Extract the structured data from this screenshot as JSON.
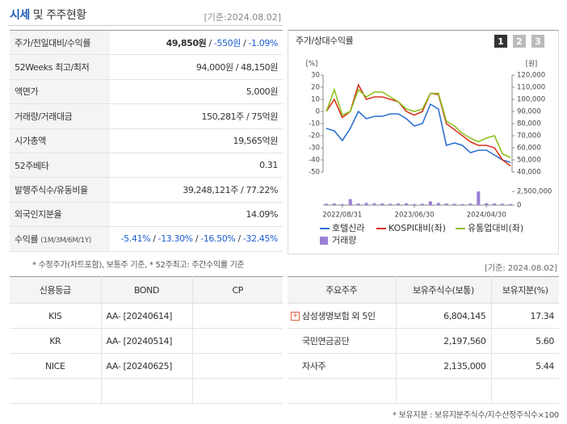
{
  "header": {
    "title_main": "시세",
    "title_rest": "및 주주현황",
    "date": "[기준:2024.08.02]"
  },
  "info_table": {
    "rows": [
      {
        "label": "주가/전일대비/수익률",
        "value": [
          "49,850원",
          " / ",
          "-550원",
          " / ",
          "-1.09%"
        ]
      },
      {
        "label": "52Weeks 최고/최저",
        "value": [
          "94,000원 / 48,150원"
        ]
      },
      {
        "label": "액면가",
        "value": [
          "5,000원"
        ]
      },
      {
        "label": "거래량/거래대금",
        "value": [
          "150,281주 / 75억원"
        ]
      },
      {
        "label": "시가총액",
        "value": [
          "19,565억원"
        ]
      },
      {
        "label": "52주베타",
        "value": [
          "0.31"
        ]
      },
      {
        "label": "발행주식수/유동비율",
        "value": [
          "39,248,121주 / 77.22%"
        ]
      },
      {
        "label": "외국인지분율",
        "value": [
          "14.09%"
        ]
      },
      {
        "label": "수익률",
        "label_note": "(1M/3M/6M/1Y)",
        "value": [
          "-5.41%",
          " / ",
          "-13.30%",
          " / ",
          "-16.50%",
          " / ",
          "-32.45%"
        ]
      }
    ],
    "footnote": "* 수정주가(차트포함), 보통주 기준, * 52주최고: 주간수익률 기준"
  },
  "chart_panel": {
    "title": "주가/상대수익률",
    "buttons": [
      "1",
      "2",
      "3"
    ],
    "date": "[기준: 2024.08.02]"
  },
  "chart_data": {
    "type": "line",
    "y_label": "[%]",
    "y2_label": "[원]",
    "categories": [
      null,
      null,
      "2022/08/31",
      null,
      null,
      null,
      null,
      null,
      null,
      null,
      null,
      "2023/06/30",
      null,
      null,
      null,
      null,
      null,
      null,
      null,
      null,
      "2024/04/30",
      null,
      null,
      null
    ],
    "ylim": [
      -50,
      30
    ],
    "yticks": [
      30,
      20,
      10,
      0,
      -10,
      -20,
      -30,
      -40,
      -50
    ],
    "y2lim": [
      40000,
      120000
    ],
    "y2ticks": [
      {
        "value": 120000,
        "label": "120,000"
      },
      {
        "value": 110000,
        "label": "110,000"
      },
      {
        "value": 100000,
        "label": "100,000"
      },
      {
        "value": 90000,
        "label": "90,000"
      },
      {
        "value": 80000,
        "label": "80,000"
      },
      {
        "value": 70000,
        "label": "70,000"
      },
      {
        "value": 60000,
        "label": "60,000"
      },
      {
        "value": 50000,
        "label": "50,000"
      },
      {
        "value": 40000,
        "label": "40,000"
      }
    ],
    "series": [
      {
        "name": "호텔신라",
        "color": "#2f6fd0",
        "axis": "y2",
        "values": [
          76000,
          74000,
          66000,
          76000,
          90000,
          84000,
          86000,
          86000,
          88000,
          88000,
          84000,
          78000,
          80000,
          96000,
          92000,
          62000,
          64000,
          62000,
          56000,
          58000,
          58000,
          54000,
          50000,
          48000
        ]
      },
      {
        "name": "KOSPI대비(좌)",
        "color": "#d9341f",
        "values": [
          0,
          10,
          -5,
          0,
          22,
          10,
          12,
          12,
          10,
          8,
          0,
          -3,
          0,
          15,
          14,
          -10,
          -15,
          -20,
          -25,
          -28,
          -28,
          -30,
          -40,
          -45
        ]
      },
      {
        "name": "유통업대비(좌)",
        "color": "#8cc21f",
        "values": [
          0,
          18,
          -3,
          0,
          18,
          12,
          16,
          16,
          12,
          8,
          2,
          0,
          2,
          15,
          15,
          -8,
          -12,
          -18,
          -22,
          -25,
          -22,
          -20,
          -35,
          -38
        ]
      }
    ],
    "volume": {
      "name": "거래량",
      "color": "#9b7fd4",
      "values": [
        250000,
        300000,
        200000,
        1100000,
        300000,
        400000,
        350000,
        300000,
        250000,
        300000,
        350000,
        200000,
        250000,
        700000,
        400000,
        300000,
        250000,
        200000,
        300000,
        2500000,
        350000,
        300000,
        250000,
        200000
      ]
    },
    "volume_lim": [
      0,
      2500000
    ],
    "volume_ticks": [
      {
        "value": 2500000,
        "label": "2,500,000"
      },
      0
    ]
  },
  "credit_table": {
    "header": [
      "신용등급",
      "BOND",
      "CP"
    ],
    "rows": [
      [
        "KIS",
        "AA-  [20240614]",
        ""
      ],
      [
        "KR",
        "AA-  [20240514]",
        ""
      ],
      [
        "NICE",
        "AA-  [20240625]",
        ""
      ],
      [
        "",
        "",
        ""
      ]
    ]
  },
  "holders_table": {
    "header": [
      "주요주주",
      "보유주식수(보통)",
      "보유지분(%)"
    ],
    "rows": [
      [
        "삼성생명보험 외 5인",
        "6,804,145",
        "17.34"
      ],
      [
        "국민연금공단",
        "2,197,560",
        "5.60"
      ],
      [
        "자사주",
        "2,135,000",
        "5.44"
      ],
      [
        "",
        "",
        ""
      ]
    ],
    "footnote": "* 보유지분 : 보유지분주식수/지수산정주식수×100"
  }
}
